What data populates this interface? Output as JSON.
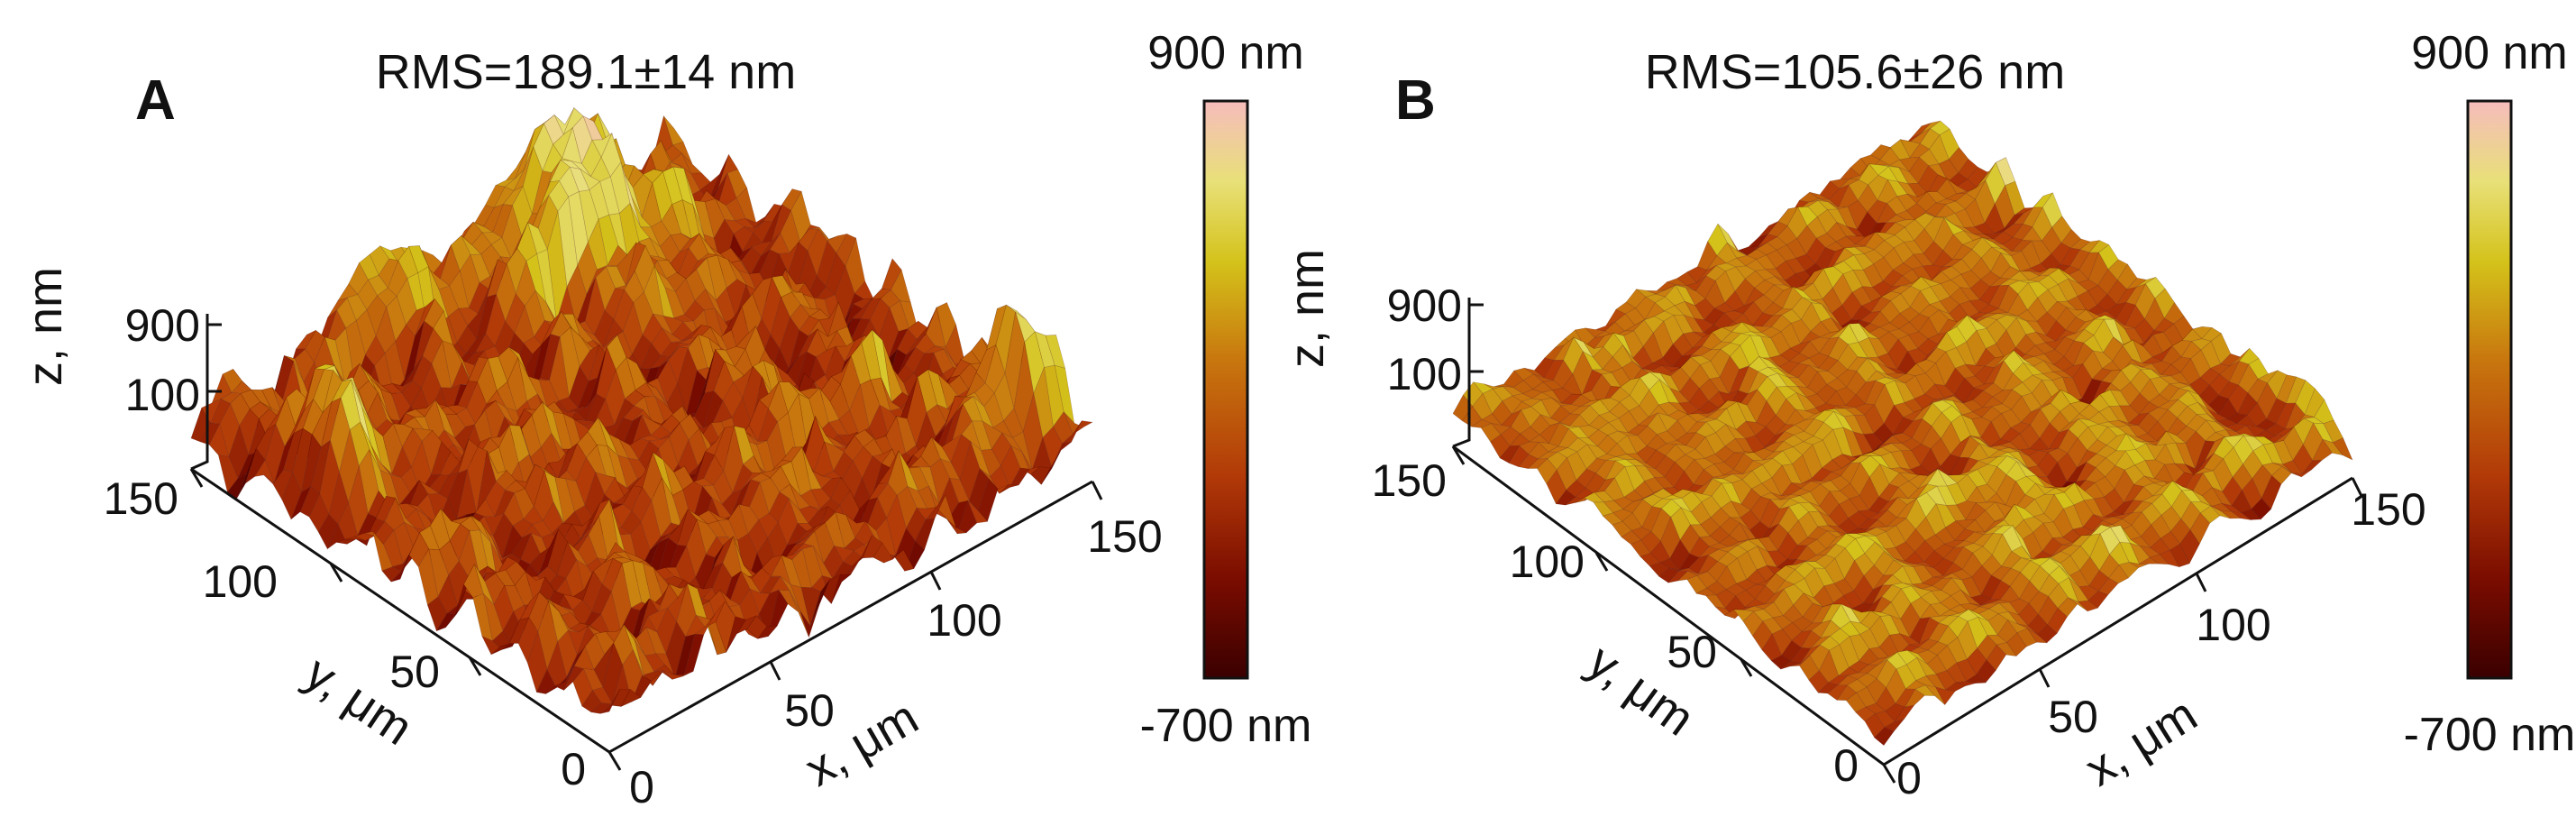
{
  "chart_data": [
    {
      "type": "surface3d",
      "panel": "A",
      "title": "RMS=189.1±14 nm",
      "colorscale": [
        "#3a0000",
        "#7a0c00",
        "#b23a08",
        "#c8760e",
        "#d4c21a",
        "#e8e078",
        "#f6bcbc"
      ],
      "colorbar": {
        "max_label": "900 nm",
        "min_label": "-700 nm",
        "range": [
          -700,
          900
        ]
      },
      "xlabel": "x, μm",
      "ylabel": "y, μm",
      "zlabel": "z, nm",
      "x_ticks": [
        0,
        50,
        100,
        150
      ],
      "y_ticks": [
        0,
        50,
        100,
        150
      ],
      "z_ticks": [
        100,
        900
      ],
      "xlim": [
        0,
        150
      ],
      "ylim": [
        0,
        150
      ],
      "zlim": [
        -700,
        900
      ],
      "roughness": 1.0,
      "peaks": [
        {
          "x": 105,
          "y": 135,
          "height": 3.2,
          "spread": 14
        },
        {
          "x": 15,
          "y": 115,
          "height": 2.4,
          "spread": 7
        },
        {
          "x": 140,
          "y": 20,
          "height": 2.6,
          "spread": 7
        },
        {
          "x": 60,
          "y": 150,
          "height": 1.5,
          "spread": 10
        }
      ]
    },
    {
      "type": "surface3d",
      "panel": "B",
      "title": "RMS=105.6±26 nm",
      "colorscale": [
        "#3a0000",
        "#7a0c00",
        "#b23a08",
        "#c8760e",
        "#d4c21a",
        "#e8e078",
        "#f6bcbc"
      ],
      "colorbar": {
        "max_label": "900 nm",
        "min_label": "-700 nm",
        "range": [
          -700,
          900
        ]
      },
      "xlabel": "x, μm",
      "ylabel": "y, μm",
      "zlabel": "z, nm",
      "x_ticks": [
        0,
        50,
        100,
        150
      ],
      "y_ticks": [
        0,
        50,
        100,
        150
      ],
      "z_ticks": [
        100,
        900
      ],
      "xlim": [
        0,
        150
      ],
      "ylim": [
        0,
        150
      ],
      "zlim": [
        -700,
        900
      ],
      "roughness": 0.6,
      "peaks": []
    }
  ]
}
